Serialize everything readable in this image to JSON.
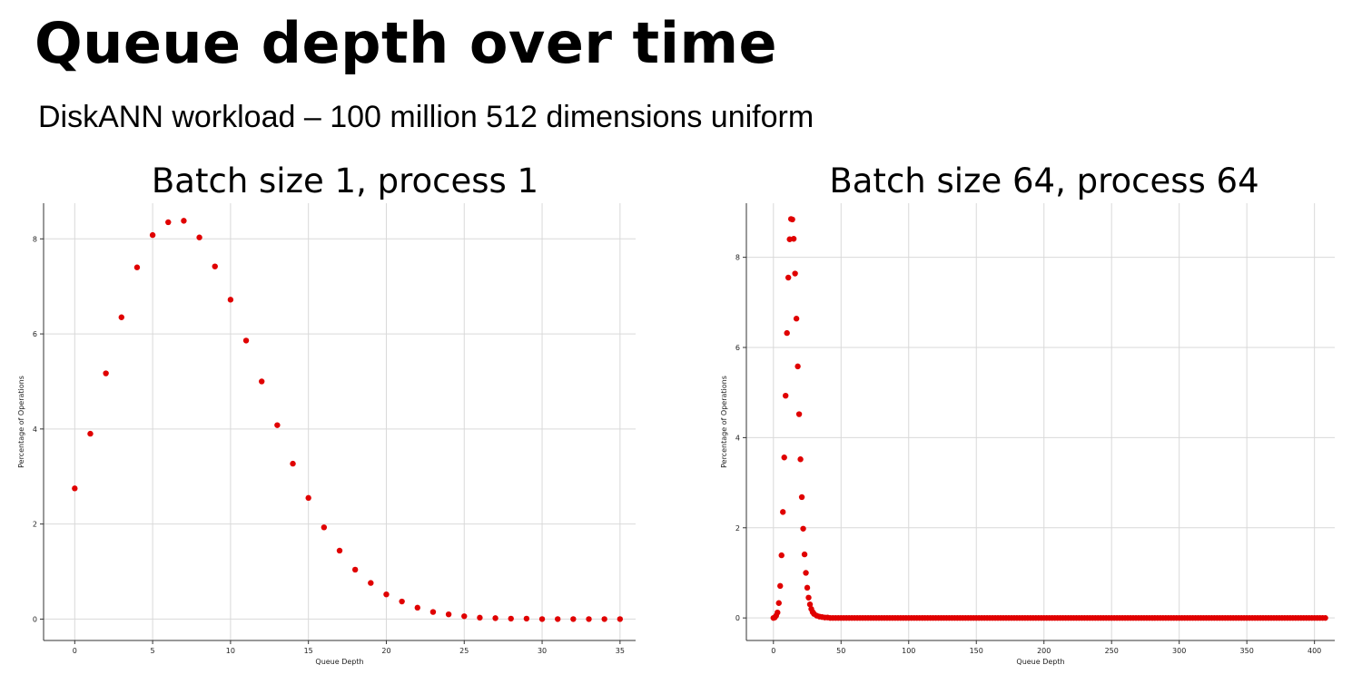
{
  "slide": {
    "title": "Queue depth over time",
    "subtitle": "DiskANN workload – 100 million 512 dimensions uniform"
  },
  "colors": {
    "marker": "#e00000",
    "grid": "#d9d9d9",
    "axis": "#333333"
  },
  "chart_data": [
    {
      "type": "scatter",
      "title": "Batch size 1, process 1",
      "xlabel": "Queue Depth",
      "ylabel": "Percentage of Operations",
      "xlim": [
        -2,
        36
      ],
      "ylim": [
        -0.45,
        8.75
      ],
      "xticks": [
        0,
        5,
        10,
        15,
        20,
        25,
        30,
        35
      ],
      "yticks": [
        0,
        2,
        4,
        6,
        8
      ],
      "grid": true,
      "x": [
        0,
        1,
        2,
        3,
        4,
        5,
        6,
        7,
        8,
        9,
        10,
        11,
        12,
        13,
        14,
        15,
        16,
        17,
        18,
        19,
        20,
        21,
        22,
        23,
        24,
        25,
        26,
        27,
        28,
        29,
        30,
        31,
        32,
        33,
        34,
        35
      ],
      "y": [
        2.75,
        3.9,
        5.17,
        6.35,
        7.4,
        8.08,
        8.35,
        8.38,
        8.03,
        7.42,
        6.72,
        5.86,
        5.0,
        4.08,
        3.27,
        2.55,
        1.93,
        1.44,
        1.04,
        0.76,
        0.52,
        0.37,
        0.24,
        0.15,
        0.1,
        0.06,
        0.03,
        0.02,
        0.01,
        0.01,
        0.0,
        0.0,
        0.0,
        0.0,
        0.0,
        0.0
      ]
    },
    {
      "type": "scatter",
      "title": "Batch size 64, process 64",
      "xlabel": "Queue Depth",
      "ylabel": "Percentage of Operations",
      "xlim": [
        -20,
        415
      ],
      "ylim": [
        -0.5,
        9.2
      ],
      "xticks": [
        0,
        50,
        100,
        150,
        200,
        250,
        300,
        350,
        400
      ],
      "yticks": [
        0,
        2,
        4,
        6,
        8
      ],
      "grid": true,
      "x": [
        0,
        1,
        2,
        3,
        4,
        5,
        6,
        7,
        8,
        9,
        10,
        11,
        12,
        13,
        14,
        15,
        16,
        17,
        18,
        19,
        20,
        21,
        22,
        23,
        24,
        25,
        26,
        27,
        28,
        29,
        30,
        32,
        34,
        36,
        38,
        40
      ],
      "y": [
        0.0,
        0.01,
        0.05,
        0.12,
        0.33,
        0.71,
        1.39,
        2.35,
        3.56,
        4.93,
        6.32,
        7.55,
        8.4,
        8.85,
        8.84,
        8.41,
        7.64,
        6.64,
        5.58,
        4.52,
        3.52,
        2.68,
        1.98,
        1.41,
        1.0,
        0.67,
        0.45,
        0.3,
        0.2,
        0.13,
        0.09,
        0.05,
        0.03,
        0.02,
        0.01,
        0.01
      ],
      "tail": {
        "x_from": 42,
        "x_to": 408,
        "step": 2,
        "value": 0.0
      }
    }
  ]
}
